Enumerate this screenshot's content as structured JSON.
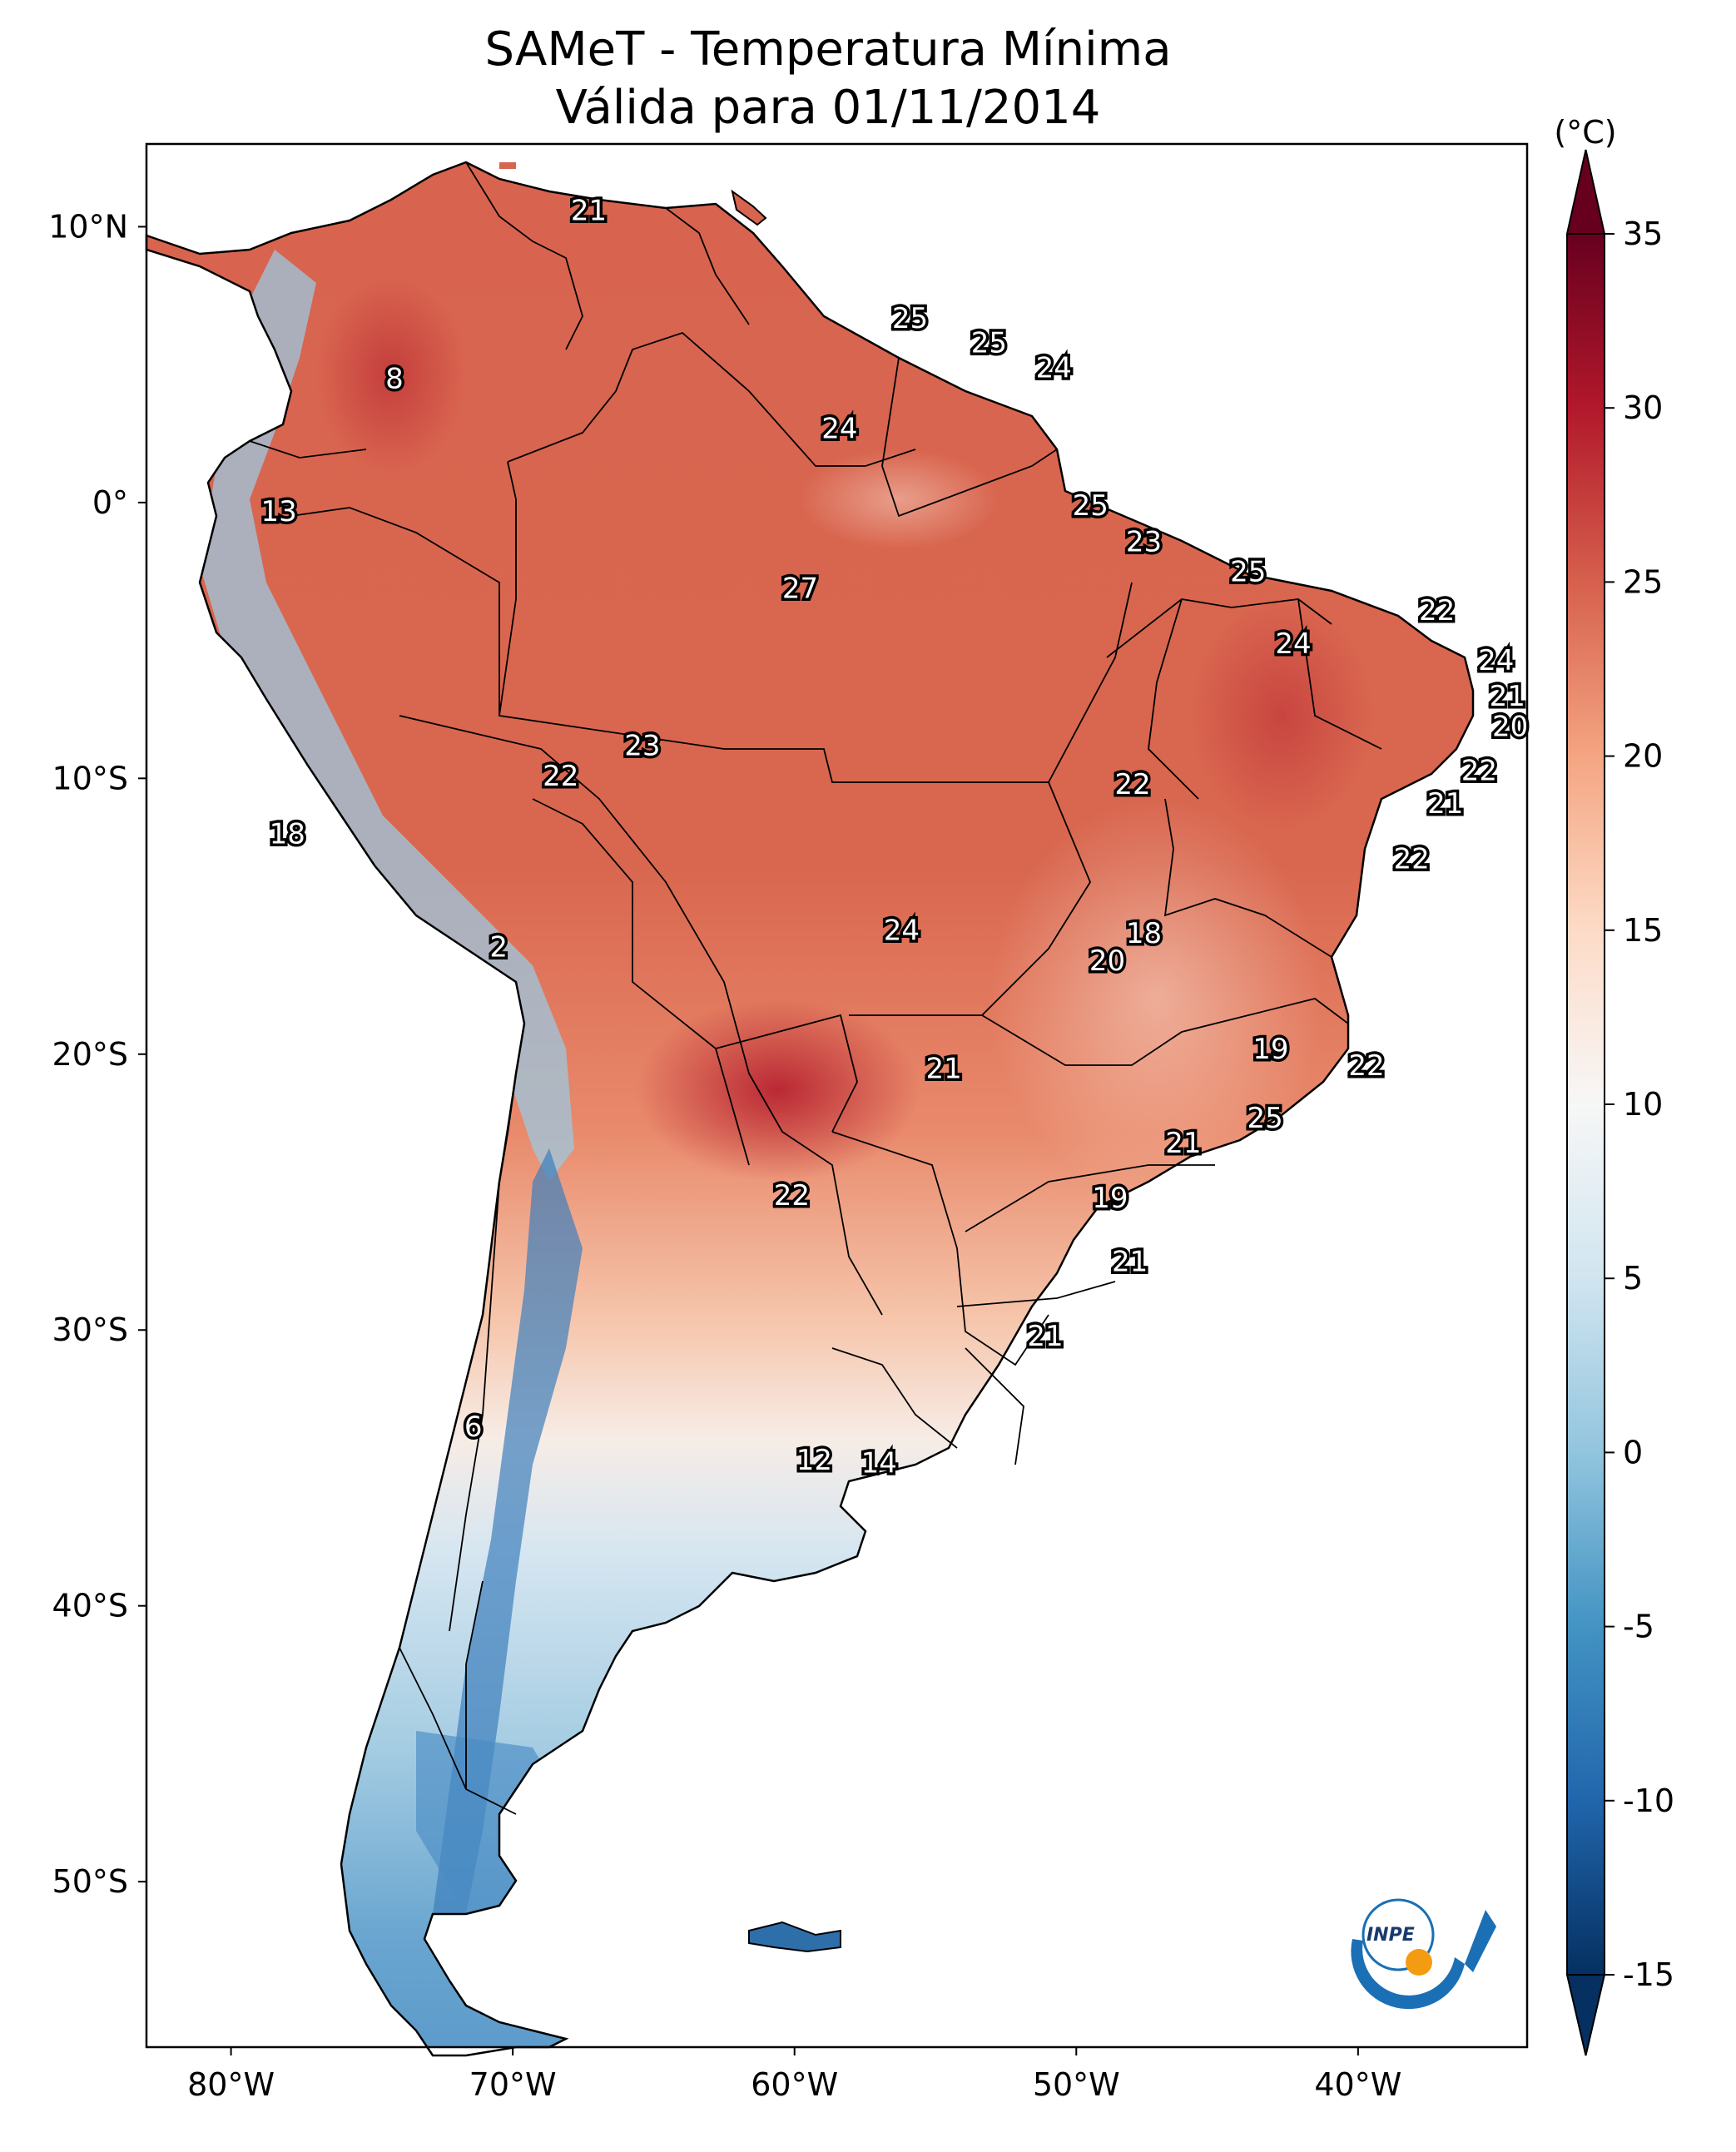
{
  "title": {
    "line1": "SAMeT - Temperatura Mínima",
    "line2": "Válida para 01/11/2014"
  },
  "axes": {
    "lat_ticks": [
      "10°N",
      "0°",
      "10°S",
      "20°S",
      "30°S",
      "40°S",
      "50°S"
    ],
    "lon_ticks": [
      "80°W",
      "70°W",
      "60°W",
      "50°W",
      "40°W"
    ]
  },
  "colorbar": {
    "unit": "(°C)",
    "ticks": [
      "35",
      "30",
      "25",
      "20",
      "15",
      "10",
      "5",
      "0",
      "-5",
      "-10",
      "-15"
    ],
    "range": [
      -15,
      35
    ],
    "extend": "both",
    "colormap": "RdBu_r",
    "colors": [
      "#053061",
      "#2166ac",
      "#4393c3",
      "#92c5de",
      "#d1e5f0",
      "#f7f7f7",
      "#fddbc7",
      "#f4a582",
      "#d6604d",
      "#b2182b",
      "#67001f"
    ]
  },
  "logo": {
    "text": "INPE",
    "colors": {
      "arc": "#1a6fb5",
      "dot": "#f39c12"
    }
  },
  "chart_data": {
    "type": "heatmap",
    "title": "SAMeT - Temperatura Mínima Válida para 01/11/2014",
    "xlim_lon": [
      -83,
      -34
    ],
    "ylim_lat": [
      -56,
      13
    ],
    "unit": "°C",
    "annotations": [
      {
        "lon": -67.3,
        "lat": 10.6,
        "value": "21"
      },
      {
        "lon": -55.9,
        "lat": 6.7,
        "value": "25"
      },
      {
        "lon": -53.1,
        "lat": 5.8,
        "value": "25"
      },
      {
        "lon": -50.8,
        "lat": 4.9,
        "value": "24"
      },
      {
        "lon": -74.2,
        "lat": 4.5,
        "value": "8"
      },
      {
        "lon": -58.4,
        "lat": 2.7,
        "value": "24"
      },
      {
        "lon": -78.3,
        "lat": -0.3,
        "value": "13"
      },
      {
        "lon": -49.5,
        "lat": -0.1,
        "value": "25"
      },
      {
        "lon": -47.6,
        "lat": -1.4,
        "value": "23"
      },
      {
        "lon": -59.8,
        "lat": -3.1,
        "value": "27"
      },
      {
        "lon": -43.9,
        "lat": -2.5,
        "value": "25"
      },
      {
        "lon": -37.2,
        "lat": -3.9,
        "value": "22"
      },
      {
        "lon": -42.3,
        "lat": -5.1,
        "value": "24"
      },
      {
        "lon": -35.1,
        "lat": -5.7,
        "value": "24"
      },
      {
        "lon": -34.7,
        "lat": -7.0,
        "value": "21"
      },
      {
        "lon": -34.6,
        "lat": -8.1,
        "value": "20"
      },
      {
        "lon": -65.4,
        "lat": -8.8,
        "value": "23"
      },
      {
        "lon": -68.3,
        "lat": -9.9,
        "value": "22"
      },
      {
        "lon": -48.0,
        "lat": -10.2,
        "value": "22"
      },
      {
        "lon": -35.7,
        "lat": -9.7,
        "value": "22"
      },
      {
        "lon": -36.9,
        "lat": -10.9,
        "value": "21"
      },
      {
        "lon": -78.0,
        "lat": -12.0,
        "value": "18"
      },
      {
        "lon": -38.1,
        "lat": -12.9,
        "value": "22"
      },
      {
        "lon": -56.2,
        "lat": -15.5,
        "value": "24"
      },
      {
        "lon": -47.6,
        "lat": -15.6,
        "value": "18"
      },
      {
        "lon": -70.5,
        "lat": -16.1,
        "value": "2"
      },
      {
        "lon": -48.9,
        "lat": -16.6,
        "value": "20"
      },
      {
        "lon": -43.1,
        "lat": -19.8,
        "value": "19"
      },
      {
        "lon": -39.7,
        "lat": -20.4,
        "value": "22"
      },
      {
        "lon": -54.7,
        "lat": -20.5,
        "value": "21"
      },
      {
        "lon": -43.3,
        "lat": -22.3,
        "value": "25"
      },
      {
        "lon": -46.2,
        "lat": -23.2,
        "value": "21"
      },
      {
        "lon": -60.1,
        "lat": -25.1,
        "value": "22"
      },
      {
        "lon": -48.8,
        "lat": -25.2,
        "value": "19"
      },
      {
        "lon": -48.1,
        "lat": -27.5,
        "value": "21"
      },
      {
        "lon": -51.1,
        "lat": -30.2,
        "value": "21"
      },
      {
        "lon": -71.4,
        "lat": -33.5,
        "value": "6"
      },
      {
        "lon": -59.3,
        "lat": -34.7,
        "value": "12"
      },
      {
        "lon": -57.0,
        "lat": -34.8,
        "value": "14"
      }
    ]
  }
}
